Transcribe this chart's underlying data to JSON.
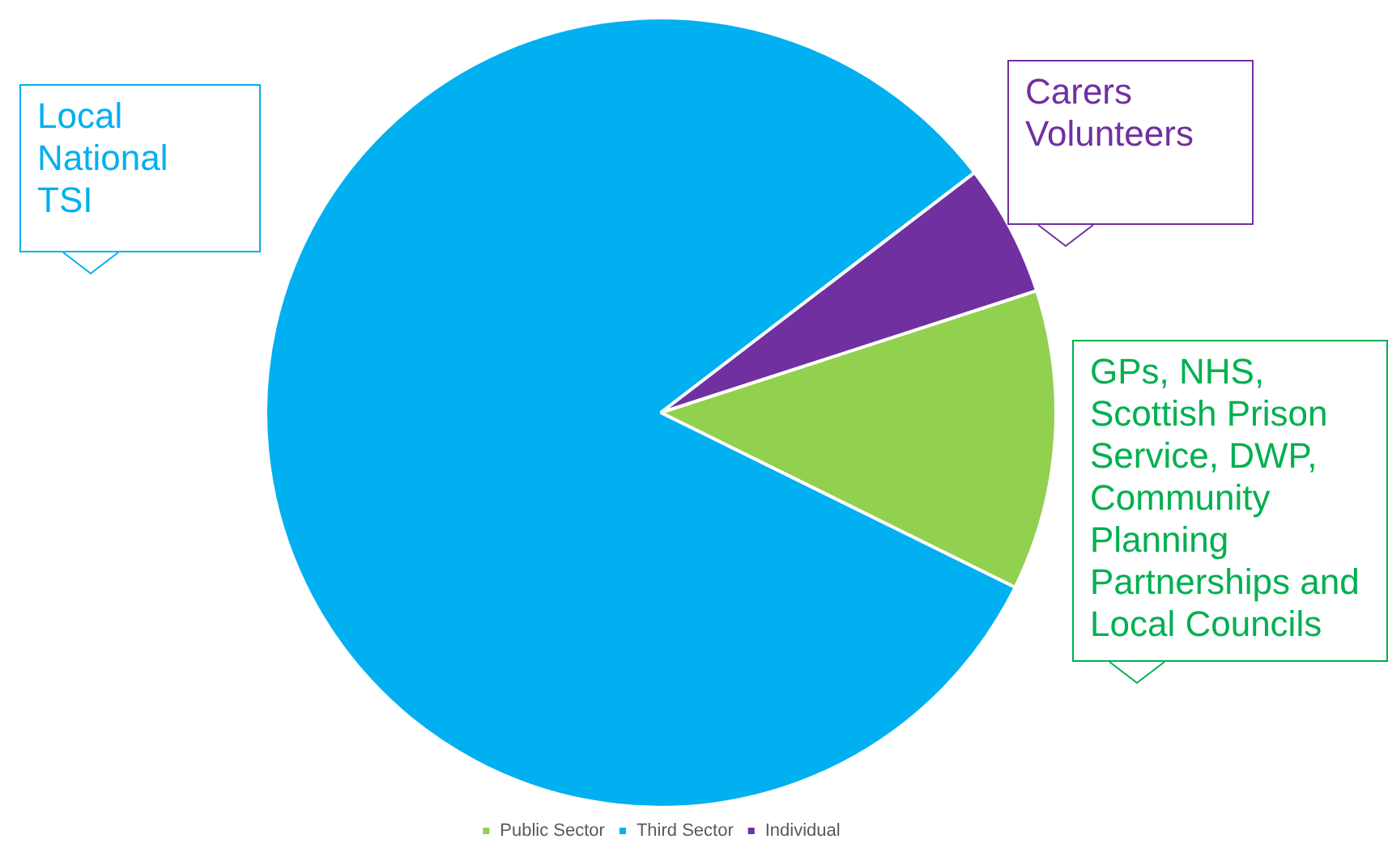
{
  "chart_data": {
    "type": "pie",
    "categories": [
      "Public Sector",
      "Third Sector",
      "Individual"
    ],
    "values": [
      12.3,
      82.3,
      5.4
    ],
    "colors": [
      "#92d050",
      "#00b0f0",
      "#7030a0"
    ],
    "legend": "bottom",
    "annotations": [
      "Local\nNational\nTSI",
      "Carers\nVolunteers",
      "GPs, NHS,\nScottish Prison\nService, DWP,\nCommunity\nPlanning\nPartnerships and\nLocal Councils"
    ]
  }
}
